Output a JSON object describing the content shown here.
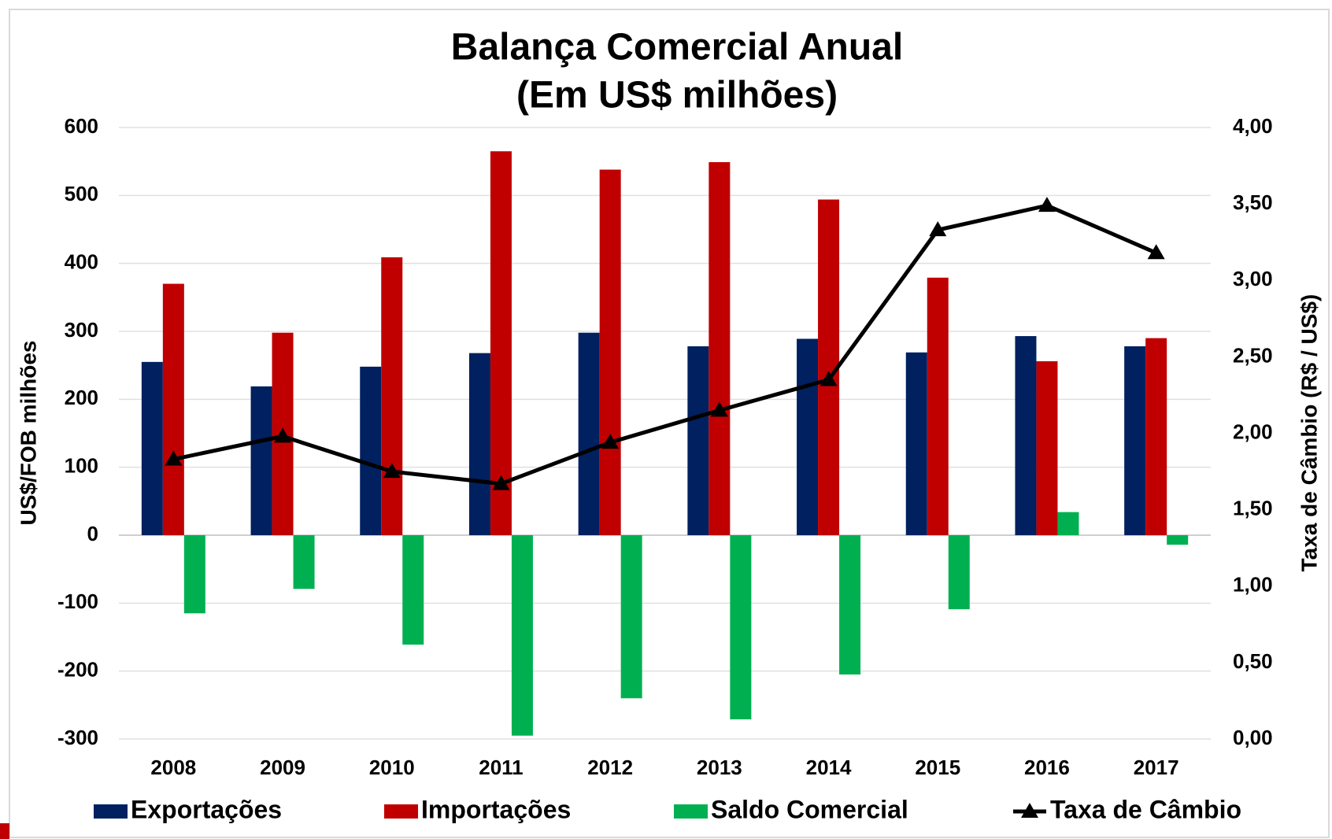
{
  "chart_data": {
    "type": "bar",
    "title": [
      "Balança Comercial Anual",
      "(Em US$ milhões)"
    ],
    "ylabel": "US$/FOB milhões",
    "y2label": "Taxa de Câmbio (R$ / US$)",
    "categories": [
      "2008",
      "2009",
      "2010",
      "2011",
      "2012",
      "2013",
      "2014",
      "2015",
      "2016",
      "2017"
    ],
    "series": [
      {
        "name": "Exportações",
        "color": "#002060",
        "values": [
          255,
          219,
          248,
          268,
          298,
          278,
          289,
          269,
          293,
          278
        ]
      },
      {
        "name": "Importações",
        "color": "#c00000",
        "values": [
          370,
          298,
          409,
          565,
          538,
          549,
          494,
          379,
          256,
          290
        ]
      },
      {
        "name": "Saldo Comercial",
        "color": "#00b050",
        "values": [
          -115,
          -79,
          -161,
          -295,
          -240,
          -271,
          -205,
          -109,
          34,
          -14
        ]
      },
      {
        "name": "Taxa de Câmbio",
        "color": "#000000",
        "type": "line",
        "axis": "y2",
        "values": [
          1.83,
          1.98,
          1.75,
          1.67,
          1.94,
          2.15,
          2.35,
          3.33,
          3.49,
          3.18
        ]
      }
    ],
    "ylim": [
      -300,
      600
    ],
    "yticks": [
      -300,
      -200,
      -100,
      0,
      100,
      200,
      300,
      400,
      500,
      600
    ],
    "y2lim": [
      0,
      4
    ],
    "y2ticks": [
      {
        "value": 0,
        "label": "0,00"
      },
      {
        "value": 0.5,
        "label": "0,50"
      },
      {
        "value": 1,
        "label": "1,00"
      },
      {
        "value": 1.5,
        "label": "1,50"
      },
      {
        "value": 2,
        "label": "2,00"
      },
      {
        "value": 2.5,
        "label": "2,50"
      },
      {
        "value": 3,
        "label": "3,00"
      },
      {
        "value": 3.5,
        "label": "3,50"
      },
      {
        "value": 4,
        "label": "4,00"
      }
    ],
    "grid": true,
    "legend": "bottom"
  }
}
